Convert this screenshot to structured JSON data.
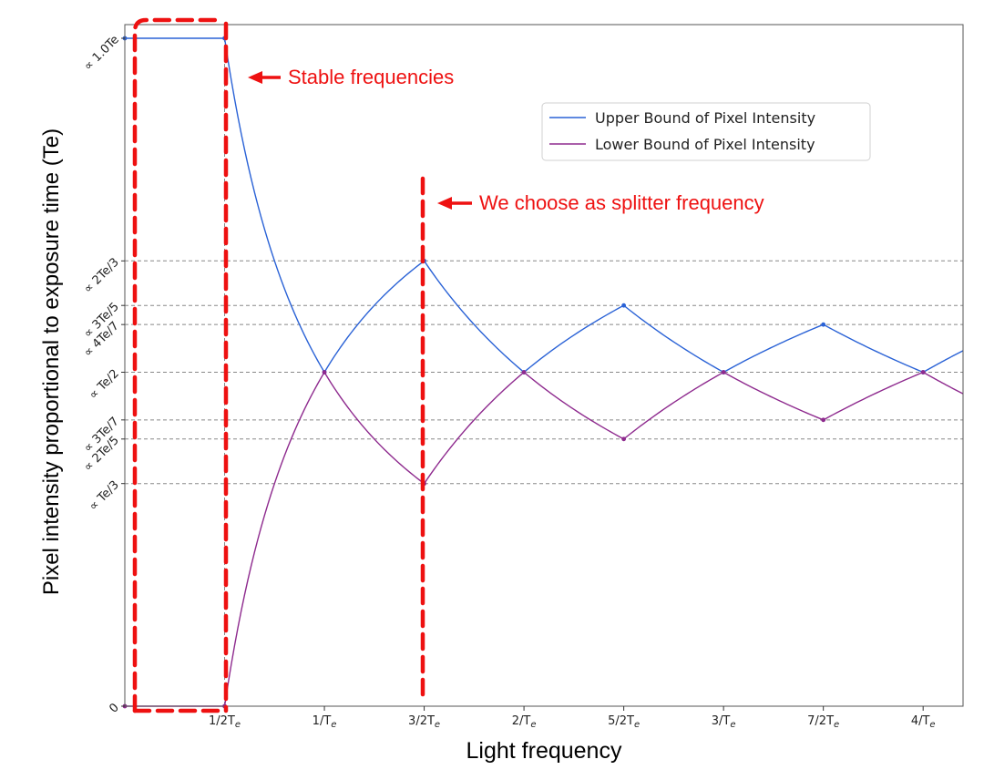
{
  "chart_data": {
    "type": "line",
    "xlabel": "Light frequency",
    "ylabel": "Pixel intensity proportional to exposure time (Te)",
    "x_unit": "1/Te",
    "y_unit": "Te",
    "xlim": [
      0,
      4.2
    ],
    "ylim": [
      0,
      1.0
    ],
    "x_ticks": [
      {
        "value": 0.5,
        "label": "1/2T",
        "sub": "e"
      },
      {
        "value": 1.0,
        "label": "1/T",
        "sub": "e"
      },
      {
        "value": 1.5,
        "label": "3/2T",
        "sub": "e"
      },
      {
        "value": 2.0,
        "label": "2/T",
        "sub": "e"
      },
      {
        "value": 2.5,
        "label": "5/2T",
        "sub": "e"
      },
      {
        "value": 3.0,
        "label": "3/T",
        "sub": "e"
      },
      {
        "value": 3.5,
        "label": "7/2T",
        "sub": "e"
      },
      {
        "value": 4.0,
        "label": "4/T",
        "sub": "e"
      }
    ],
    "y_ticks": [
      {
        "value": 0,
        "label": "0"
      },
      {
        "value": 0.3333,
        "label": "∝ Te/3"
      },
      {
        "value": 0.4,
        "label": "∝ 2Te/5"
      },
      {
        "value": 0.4286,
        "label": "∝ 3Te/7"
      },
      {
        "value": 0.5,
        "label": "∝ Te/2"
      },
      {
        "value": 0.5714,
        "label": "∝ 4Te/7"
      },
      {
        "value": 0.6,
        "label": "∝ 3Te/5"
      },
      {
        "value": 0.6667,
        "label": "∝ 2Te/3"
      },
      {
        "value": 1.0,
        "label": "∝ 1.0Te"
      }
    ],
    "guide_lines_y": [
      0.6667,
      0.6,
      0.5714,
      0.5,
      0.4286,
      0.4,
      0.3333
    ],
    "vertical_guide_x": 0.5,
    "series": [
      {
        "name": "Upper Bound of Pixel Intensity",
        "color": "#2a62d6",
        "nodes": [
          [
            0,
            1.0
          ],
          [
            0.5,
            1.0
          ],
          [
            1.0,
            0.5
          ],
          [
            1.5,
            0.6667
          ],
          [
            2.0,
            0.5
          ],
          [
            2.5,
            0.6
          ],
          [
            3.0,
            0.5
          ],
          [
            3.5,
            0.5714
          ],
          [
            4.0,
            0.5
          ],
          [
            4.2,
            0.5323
          ]
        ],
        "points": [
          [
            0,
            1.0
          ],
          [
            0.5,
            1.0
          ],
          [
            1.0,
            0.5
          ],
          [
            1.5,
            0.6667
          ],
          [
            2.0,
            0.5
          ],
          [
            2.5,
            0.6
          ],
          [
            3.0,
            0.5
          ],
          [
            3.5,
            0.5714
          ],
          [
            4.0,
            0.5
          ]
        ]
      },
      {
        "name": "Lower Bound of Pixel Intensity",
        "color": "#8e2a8e",
        "nodes": [
          [
            0,
            0
          ],
          [
            0.5,
            0
          ],
          [
            1.0,
            0.5
          ],
          [
            1.5,
            0.3333
          ],
          [
            2.0,
            0.5
          ],
          [
            2.5,
            0.4
          ],
          [
            3.0,
            0.5
          ],
          [
            3.5,
            0.4286
          ],
          [
            4.0,
            0.5
          ],
          [
            4.2,
            0.4677
          ]
        ],
        "points": [
          [
            0,
            0
          ],
          [
            0.5,
            0
          ],
          [
            1.0,
            0.5
          ],
          [
            1.5,
            0.3333
          ],
          [
            2.0,
            0.5
          ],
          [
            2.5,
            0.4
          ],
          [
            3.0,
            0.5
          ],
          [
            3.5,
            0.4286
          ],
          [
            4.0,
            0.5
          ]
        ]
      }
    ],
    "legend_position": "upper-right",
    "annotations": [
      {
        "text": "Stable frequencies",
        "color": "#ee1111"
      },
      {
        "text": "We choose as splitter frequency",
        "color": "#ee1111"
      }
    ]
  }
}
